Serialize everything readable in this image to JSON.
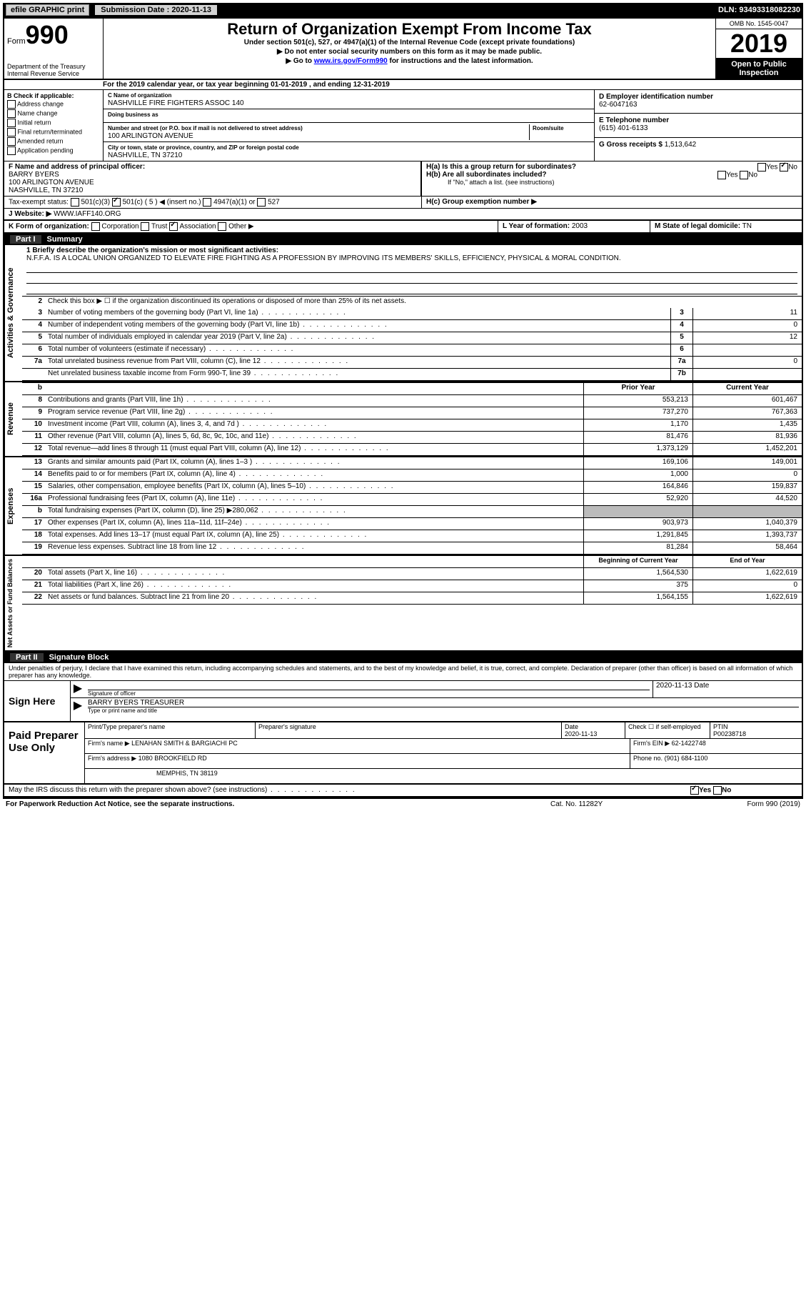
{
  "header": {
    "efile": "efile GRAPHIC print",
    "submission_label": "Submission Date : 2020-11-13",
    "dln": "DLN: 93493318082230"
  },
  "form": {
    "form_prefix": "Form",
    "form_number": "990",
    "dept": "Department of the Treasury\nInternal Revenue Service",
    "title": "Return of Organization Exempt From Income Tax",
    "subtitle": "Under section 501(c), 527, or 4947(a)(1) of the Internal Revenue Code (except private foundations)",
    "note1": "▶ Do not enter social security numbers on this form as it may be made public.",
    "note2": "▶ Go to www.irs.gov/Form990 for instructions and the latest information.",
    "link": "www.irs.gov/Form990",
    "omb": "OMB No. 1545-0047",
    "year": "2019",
    "open_public": "Open to Public Inspection"
  },
  "period": {
    "label": "A",
    "text": "For the 2019 calendar year, or tax year beginning 01-01-2019    , and ending 12-31-2019"
  },
  "section_b": {
    "label": "B Check if applicable:",
    "items": [
      "Address change",
      "Name change",
      "Initial return",
      "Final return/terminated",
      "Amended return",
      "Application pending"
    ]
  },
  "section_c": {
    "name_label": "C Name of organization",
    "name": "NASHVILLE FIRE FIGHTERS ASSOC 140",
    "dba_label": "Doing business as",
    "dba": "",
    "street_label": "Number and street (or P.O. box if mail is not delivered to street address)",
    "room_label": "Room/suite",
    "street": "100 ARLINGTON AVENUE",
    "city_label": "City or town, state or province, country, and ZIP or foreign postal code",
    "city": "NASHVILLE, TN  37210"
  },
  "section_d": {
    "label": "D Employer identification number",
    "value": "62-6047163"
  },
  "section_e": {
    "label": "E Telephone number",
    "value": "(615) 401-6133"
  },
  "section_g": {
    "label": "G Gross receipts $",
    "value": "1,513,642"
  },
  "section_f": {
    "label": "F  Name and address of principal officer:",
    "name": "BARRY BYERS",
    "street": "100 ARLINGTON AVENUE",
    "city": "NASHVILLE, TN  37210"
  },
  "section_h": {
    "ha": "H(a)  Is this a group return for subordinates?",
    "hb": "H(b)  Are all subordinates included?",
    "hb_note": "If \"No,\" attach a list. (see instructions)",
    "hc": "H(c)  Group exemption number ▶",
    "yes": "Yes",
    "no": "No"
  },
  "tax_exempt": {
    "label": "Tax-exempt status:",
    "opt1": "501(c)(3)",
    "opt2": "501(c) ( 5 ) ◀ (insert no.)",
    "opt3": "4947(a)(1) or",
    "opt4": "527"
  },
  "section_j": {
    "label": "J    Website: ▶",
    "value": "WWW.IAFF140.ORG"
  },
  "section_k": {
    "label": "K Form of organization:",
    "opts": [
      "Corporation",
      "Trust",
      "Association",
      "Other ▶"
    ]
  },
  "section_l": {
    "label": "L Year of formation:",
    "value": "2003"
  },
  "section_m": {
    "label": "M State of legal domicile:",
    "value": "TN"
  },
  "part1": {
    "header": "Part I",
    "title": "Summary",
    "line1_label": "1 Briefly describe the organization's mission or most significant activities:",
    "line1_text": "N.F.F.A. IS A LOCAL UNION ORGANIZED TO ELEVATE FIRE FIGHTING AS A PROFESSION BY IMPROVING ITS MEMBERS' SKILLS, EFFICIENCY, PHYSICAL & MORAL CONDITION.",
    "line2": "Check this box ▶ ☐  if the organization discontinued its operations or disposed of more than 25% of its net assets.",
    "governance_label": "Activities & Governance",
    "revenue_label": "Revenue",
    "expenses_label": "Expenses",
    "netassets_label": "Net Assets or Fund Balances",
    "prior_year": "Prior Year",
    "current_year": "Current Year",
    "begin_year": "Beginning of Current Year",
    "end_year": "End of Year",
    "lines_gov": [
      {
        "num": "3",
        "text": "Number of voting members of the governing body (Part VI, line 1a)",
        "col": "3",
        "val": "11"
      },
      {
        "num": "4",
        "text": "Number of independent voting members of the governing body (Part VI, line 1b)",
        "col": "4",
        "val": "0"
      },
      {
        "num": "5",
        "text": "Total number of individuals employed in calendar year 2019 (Part V, line 2a)",
        "col": "5",
        "val": "12"
      },
      {
        "num": "6",
        "text": "Total number of volunteers (estimate if necessary)",
        "col": "6",
        "val": ""
      },
      {
        "num": "7a",
        "text": "Total unrelated business revenue from Part VIII, column (C), line 12",
        "col": "7a",
        "val": "0"
      },
      {
        "num": "",
        "text": "Net unrelated business taxable income from Form 990-T, line 39",
        "col": "7b",
        "val": ""
      }
    ],
    "lines_rev": [
      {
        "num": "8",
        "text": "Contributions and grants (Part VIII, line 1h)",
        "prior": "553,213",
        "curr": "601,467"
      },
      {
        "num": "9",
        "text": "Program service revenue (Part VIII, line 2g)",
        "prior": "737,270",
        "curr": "767,363"
      },
      {
        "num": "10",
        "text": "Investment income (Part VIII, column (A), lines 3, 4, and 7d )",
        "prior": "1,170",
        "curr": "1,435"
      },
      {
        "num": "11",
        "text": "Other revenue (Part VIII, column (A), lines 5, 6d, 8c, 9c, 10c, and 11e)",
        "prior": "81,476",
        "curr": "81,936"
      },
      {
        "num": "12",
        "text": "Total revenue—add lines 8 through 11 (must equal Part VIII, column (A), line 12)",
        "prior": "1,373,129",
        "curr": "1,452,201"
      }
    ],
    "lines_exp": [
      {
        "num": "13",
        "text": "Grants and similar amounts paid (Part IX, column (A), lines 1–3 )",
        "prior": "169,106",
        "curr": "149,001"
      },
      {
        "num": "14",
        "text": "Benefits paid to or for members (Part IX, column (A), line 4)",
        "prior": "1,000",
        "curr": "0"
      },
      {
        "num": "15",
        "text": "Salaries, other compensation, employee benefits (Part IX, column (A), lines 5–10)",
        "prior": "164,846",
        "curr": "159,837"
      },
      {
        "num": "16a",
        "text": "Professional fundraising fees (Part IX, column (A), line 11e)",
        "prior": "52,920",
        "curr": "44,520"
      },
      {
        "num": "b",
        "text": "Total fundraising expenses (Part IX, column (D), line 25) ▶280,062",
        "prior": "",
        "curr": "",
        "shaded": true
      },
      {
        "num": "17",
        "text": "Other expenses (Part IX, column (A), lines 11a–11d, 11f–24e)",
        "prior": "903,973",
        "curr": "1,040,379"
      },
      {
        "num": "18",
        "text": "Total expenses. Add lines 13–17 (must equal Part IX, column (A), line 25)",
        "prior": "1,291,845",
        "curr": "1,393,737"
      },
      {
        "num": "19",
        "text": "Revenue less expenses. Subtract line 18 from line 12",
        "prior": "81,284",
        "curr": "58,464"
      }
    ],
    "lines_net": [
      {
        "num": "20",
        "text": "Total assets (Part X, line 16)",
        "prior": "1,564,530",
        "curr": "1,622,619"
      },
      {
        "num": "21",
        "text": "Total liabilities (Part X, line 26)",
        "prior": "375",
        "curr": "0"
      },
      {
        "num": "22",
        "text": "Net assets or fund balances. Subtract line 21 from line 20",
        "prior": "1,564,155",
        "curr": "1,622,619"
      }
    ]
  },
  "part2": {
    "header": "Part II",
    "title": "Signature Block",
    "declaration": "Under penalties of perjury, I declare that I have examined this return, including accompanying schedules and statements, and to the best of my knowledge and belief, it is true, correct, and complete. Declaration of preparer (other than officer) is based on all information of which preparer has any knowledge.",
    "sign_here": "Sign Here",
    "sig_label": "Signature of officer",
    "date_label": "Date",
    "sig_date": "2020-11-13",
    "officer_name": "BARRY BYERS  TREASURER",
    "name_label": "Type or print name and title",
    "paid_label": "Paid Preparer Use Only",
    "print_name_label": "Print/Type preparer's name",
    "prep_sig_label": "Preparer's signature",
    "prep_date_label": "Date",
    "prep_date": "2020-11-13",
    "self_emp": "Check ☐ if self-employed",
    "ptin_label": "PTIN",
    "ptin": "P00238718",
    "firm_name_label": "Firm's name    ▶",
    "firm_name": "LENAHAN SMITH & BARGIACHI PC",
    "firm_ein_label": "Firm's EIN ▶",
    "firm_ein": "62-1422748",
    "firm_addr_label": "Firm's address ▶",
    "firm_addr1": "1080 BROOKFIELD RD",
    "firm_addr2": "MEMPHIS, TN  38119",
    "phone_label": "Phone no.",
    "phone": "(901) 684-1100",
    "discuss": "May the IRS discuss this return with the preparer shown above? (see instructions)"
  },
  "footer": {
    "left": "For Paperwork Reduction Act Notice, see the separate instructions.",
    "mid": "Cat. No. 11282Y",
    "right": "Form 990 (2019)"
  },
  "colors": {
    "black": "#000000",
    "white": "#ffffff",
    "gray_btn": "#d3d3d3",
    "shaded": "#bbbbbb",
    "link": "#0000ff"
  }
}
